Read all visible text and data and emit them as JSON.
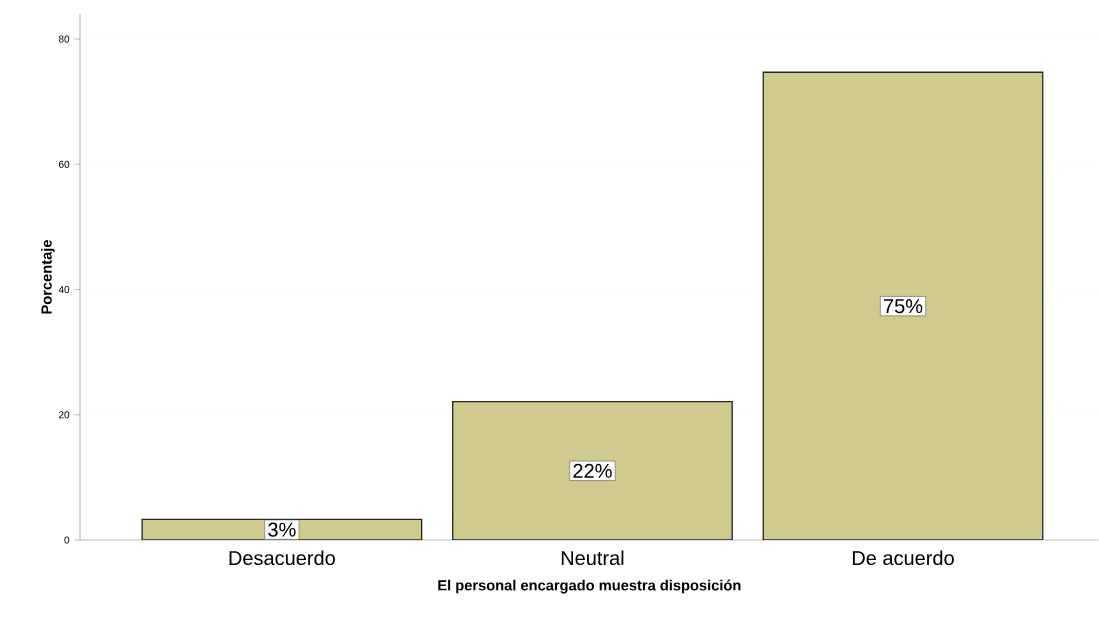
{
  "chart_data": {
    "type": "bar",
    "xlabel": "El personal encargado muestra disposición",
    "ylabel": "Porcentaje",
    "categories": [
      "Desacuerdo",
      "Neutral",
      "De acuerdo"
    ],
    "values": [
      3.3,
      22.1,
      74.7
    ],
    "value_labels": [
      "3%",
      "22%",
      "75%"
    ],
    "color": "#d0ca8e",
    "ylim": [
      0,
      84
    ],
    "yticks": [
      0,
      20,
      40,
      60,
      80
    ],
    "grid": "y"
  }
}
